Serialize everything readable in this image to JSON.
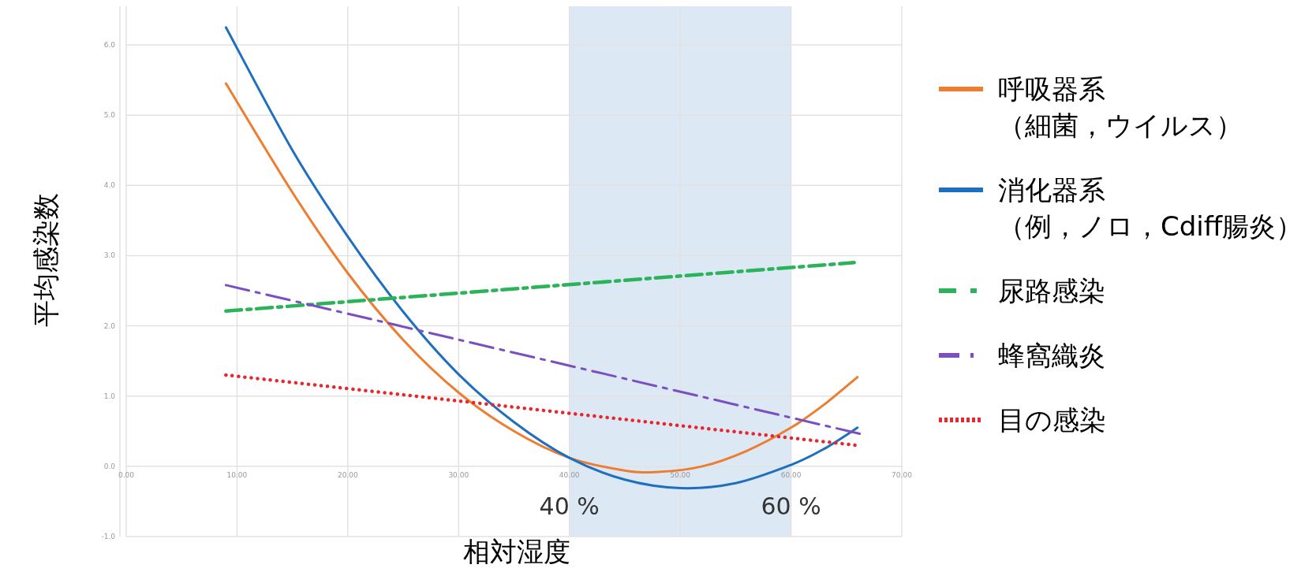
{
  "chart_data": {
    "type": "line",
    "xlabel": "相対湿度",
    "ylabel": "平均感染数",
    "xlim": [
      0,
      70
    ],
    "ylim": [
      -1,
      6.55
    ],
    "xticks": [
      {
        "value": 0,
        "label": "0.00"
      },
      {
        "value": 10,
        "label": "10.00"
      },
      {
        "value": 20,
        "label": "20.00"
      },
      {
        "value": 30,
        "label": "30.00"
      },
      {
        "value": 40,
        "label": "40.00"
      },
      {
        "value": 50,
        "label": "50.00"
      },
      {
        "value": 60,
        "label": "60.00"
      },
      {
        "value": 70,
        "label": "70.00"
      }
    ],
    "yticks": [
      {
        "value": -1,
        "label": "-1.0"
      },
      {
        "value": 0,
        "label": "0.0"
      },
      {
        "value": 1,
        "label": "1.0"
      },
      {
        "value": 2,
        "label": "2.0"
      },
      {
        "value": 3,
        "label": "3.0"
      },
      {
        "value": 4,
        "label": "4.0"
      },
      {
        "value": 5,
        "label": "5.0"
      },
      {
        "value": 6,
        "label": "6.0"
      }
    ],
    "grid": true,
    "legend": "right",
    "bands": [
      {
        "axis": "x",
        "from": 40,
        "to": 60,
        "color": "#dde8f5"
      }
    ],
    "annotations": [
      {
        "text": "40 %",
        "x": 40,
        "y": -0.55
      },
      {
        "text": "60 %",
        "x": 60,
        "y": -0.55
      }
    ],
    "series": [
      {
        "name": "呼吸器系（細菌，ウイルス）",
        "color": "#ed7d31",
        "line_style": "solid",
        "x": [
          9,
          15,
          20,
          25,
          30,
          35,
          40,
          45,
          48,
          52,
          56,
          60,
          63,
          66
        ],
        "values": [
          5.45,
          3.9,
          2.75,
          1.8,
          1.05,
          0.5,
          0.12,
          -0.06,
          -0.08,
          0.0,
          0.22,
          0.55,
          0.88,
          1.27
        ]
      },
      {
        "name": "消化器系（例，ノロ，Cdiff腸炎）",
        "color": "#1f6fbf",
        "line_style": "solid",
        "x": [
          9,
          15,
          20,
          25,
          30,
          35,
          40,
          45,
          50,
          55,
          60,
          63,
          66
        ],
        "values": [
          6.25,
          4.5,
          3.27,
          2.2,
          1.31,
          0.63,
          0.12,
          -0.19,
          -0.31,
          -0.24,
          0.02,
          0.25,
          0.55
        ]
      },
      {
        "name": "尿路感染",
        "color": "#2bb35a",
        "line_style": "dashdot",
        "x": [
          9,
          65.7
        ],
        "values": [
          2.21,
          2.9
        ]
      },
      {
        "name": "蜂窩織炎",
        "color": "#7b4fbf",
        "line_style": "longdashdot",
        "x": [
          9,
          66.3
        ],
        "values": [
          2.58,
          0.46
        ]
      },
      {
        "name": "目の感染",
        "color": "#e8262b",
        "line_style": "dotted",
        "x": [
          9,
          65.9
        ],
        "values": [
          1.3,
          0.3
        ]
      }
    ]
  }
}
